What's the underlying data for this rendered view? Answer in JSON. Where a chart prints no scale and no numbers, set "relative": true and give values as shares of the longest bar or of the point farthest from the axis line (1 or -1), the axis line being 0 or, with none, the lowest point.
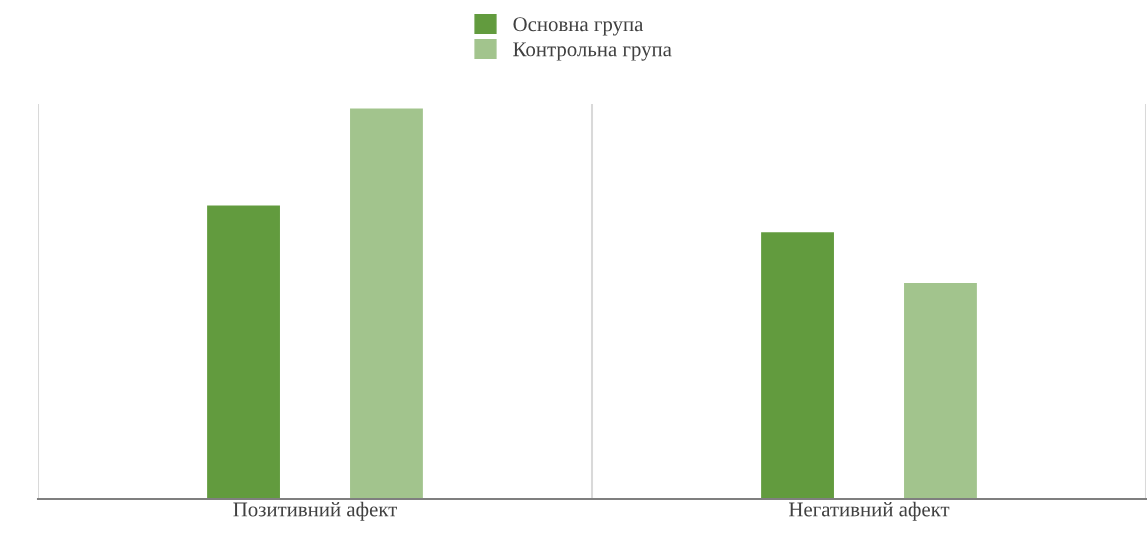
{
  "chart_data": {
    "type": "bar",
    "relative": true,
    "categories": [
      "Позитивний афект",
      "Негативний афект"
    ],
    "series": [
      {
        "name": "Основна група",
        "color": "#629b3e",
        "values": [
          0.752,
          0.684
        ]
      },
      {
        "name": "Контрольна група",
        "color": "#a2c48d",
        "values": [
          1,
          0.554
        ]
      }
    ],
    "grid": "x",
    "legend": "top"
  }
}
